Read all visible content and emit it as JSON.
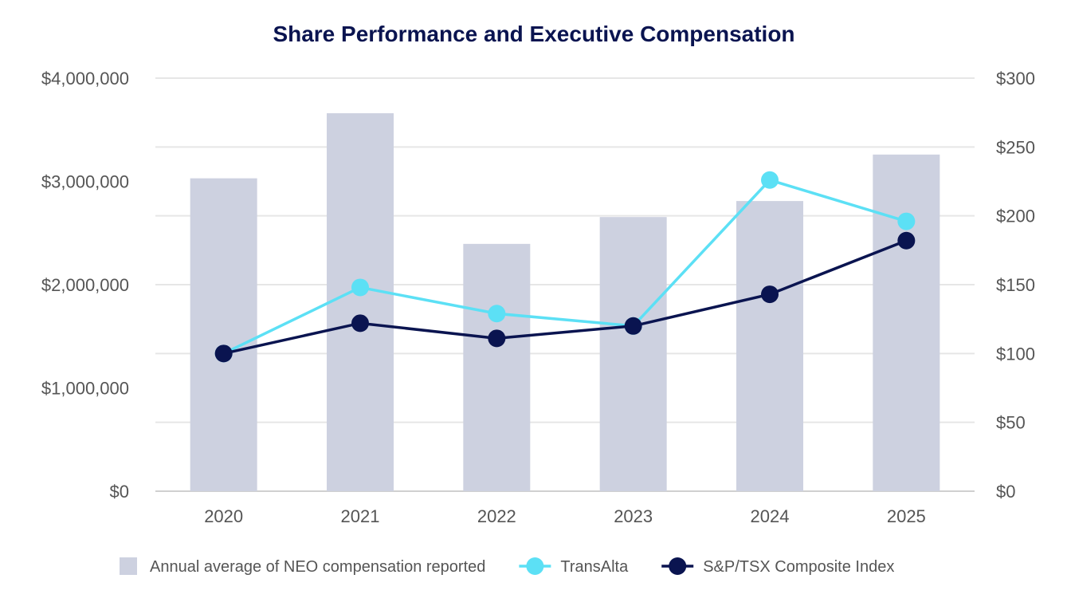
{
  "chart_data": {
    "type": "bar+line",
    "title": "Share Performance and Executive Compensation",
    "categories": [
      "2020",
      "2021",
      "2022",
      "2023",
      "2024",
      "2025"
    ],
    "y_left": {
      "range": [
        0,
        4000000
      ],
      "ticks": [
        0,
        1000000,
        2000000,
        3000000,
        4000000
      ],
      "tick_labels": [
        "$0",
        "$1,000,000",
        "$2,000,000",
        "$3,000,000",
        "$4,000,000"
      ]
    },
    "y_right": {
      "range": [
        0,
        300
      ],
      "ticks": [
        0,
        50,
        100,
        150,
        200,
        250,
        300
      ],
      "tick_labels": [
        "$0",
        "$50",
        "$100",
        "$150",
        "$200",
        "$250",
        "$300"
      ]
    },
    "grid": true,
    "legend_position": "bottom",
    "series": [
      {
        "name": "Annual average of NEO compensation reported",
        "type": "bar",
        "axis": "left",
        "color": "#cdd1e0",
        "values": [
          3030000,
          3660000,
          2395000,
          2655000,
          2810000,
          3260000
        ]
      },
      {
        "name": "TransAlta",
        "type": "line",
        "axis": "right",
        "color": "#5ce0f5",
        "values": [
          100,
          148,
          129,
          120,
          226,
          196
        ]
      },
      {
        "name": "S&P/TSX Composite Index",
        "type": "line",
        "axis": "right",
        "color": "#0a1450",
        "values": [
          100,
          122,
          111,
          120,
          143,
          182
        ]
      }
    ]
  }
}
